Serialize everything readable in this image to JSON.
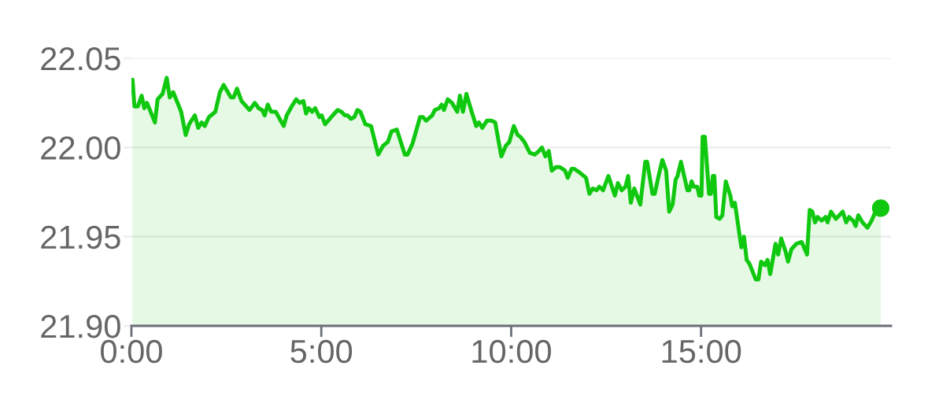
{
  "chart_data": {
    "type": "area",
    "xlim": [
      0,
      20
    ],
    "xticks": [
      {
        "value": 0,
        "label": "0:00"
      },
      {
        "value": 5,
        "label": "5:00"
      },
      {
        "value": 10,
        "label": "10:00"
      },
      {
        "value": 15,
        "label": "15:00"
      }
    ],
    "ylim": [
      21.9,
      22.05
    ],
    "yticks": [
      {
        "value": 21.9,
        "label": "21.90"
      },
      {
        "value": 21.95,
        "label": "21.95"
      },
      {
        "value": 22.0,
        "label": "22.00"
      },
      {
        "value": 22.05,
        "label": "22.05"
      }
    ],
    "grid": "y",
    "series": [
      {
        "color": "#10c810",
        "x": [
          0.03,
          0.08,
          0.17,
          0.27,
          0.34,
          0.41,
          0.62,
          0.69,
          0.82,
          0.93,
          1.01,
          1.1,
          1.31,
          1.43,
          1.52,
          1.67,
          1.76,
          1.85,
          1.93,
          2.04,
          2.21,
          2.33,
          2.43,
          2.62,
          2.69,
          2.78,
          2.9,
          3.11,
          3.25,
          3.35,
          3.44,
          3.51,
          3.59,
          3.68,
          3.8,
          4.01,
          4.09,
          4.22,
          4.34,
          4.43,
          4.53,
          4.6,
          4.67,
          4.76,
          4.84,
          4.95,
          5.01,
          5.1,
          5.26,
          5.43,
          5.53,
          5.62,
          5.69,
          5.78,
          5.87,
          5.95,
          6.03,
          6.16,
          6.31,
          6.5,
          6.63,
          6.75,
          6.85,
          6.99,
          7.2,
          7.27,
          7.4,
          7.6,
          7.68,
          7.76,
          7.92,
          7.99,
          8.1,
          8.17,
          8.23,
          8.33,
          8.44,
          8.58,
          8.65,
          8.73,
          8.82,
          8.96,
          9.08,
          9.15,
          9.24,
          9.36,
          9.48,
          9.58,
          9.74,
          9.86,
          9.95,
          10.07,
          10.17,
          10.24,
          10.35,
          10.49,
          10.62,
          10.73,
          10.81,
          10.9,
          10.99,
          11.07,
          11.18,
          11.28,
          11.42,
          11.49,
          11.59,
          11.66,
          11.8,
          11.97,
          12.06,
          12.15,
          12.25,
          12.32,
          12.42,
          12.56,
          12.73,
          12.81,
          12.91,
          13.01,
          13.08,
          13.15,
          13.24,
          13.4,
          13.53,
          13.58,
          13.72,
          13.78,
          13.88,
          13.98,
          14.08,
          14.16,
          14.25,
          14.33,
          14.38,
          14.47,
          14.64,
          14.69,
          14.75,
          14.81,
          14.9,
          14.95,
          15.01,
          15.04,
          15.1,
          15.21,
          15.26,
          15.31,
          15.35,
          15.4,
          15.49,
          15.56,
          15.65,
          15.77,
          15.82,
          15.89,
          16.06,
          16.13,
          16.2,
          16.27,
          16.44,
          16.51,
          16.58,
          16.68,
          16.75,
          16.82,
          16.96,
          17.03,
          17.11,
          17.22,
          17.29,
          17.38,
          17.51,
          17.65,
          17.79,
          17.86,
          17.93,
          18.0,
          18.07,
          18.17,
          18.28,
          18.33,
          18.42,
          18.55,
          18.73,
          18.82,
          18.9,
          19.0,
          19.07,
          19.14,
          19.25,
          19.38,
          19.49,
          19.59,
          19.73
        ],
        "values": [
          22.038,
          22.023,
          22.023,
          22.029,
          22.022,
          22.025,
          22.014,
          22.027,
          22.03,
          22.039,
          22.028,
          22.031,
          22.02,
          22.007,
          22.013,
          22.018,
          22.011,
          22.014,
          22.012,
          22.017,
          22.02,
          22.031,
          22.035,
          22.028,
          22.028,
          22.033,
          22.026,
          22.021,
          22.025,
          22.022,
          22.021,
          22.018,
          22.024,
          22.02,
          22.02,
          22.012,
          22.018,
          22.023,
          22.027,
          22.025,
          22.026,
          22.019,
          22.022,
          22.02,
          22.022,
          22.017,
          22.018,
          22.013,
          22.017,
          22.021,
          22.02,
          22.018,
          22.018,
          22.016,
          22.017,
          22.021,
          22.02,
          22.013,
          22.012,
          21.996,
          22.001,
          22.003,
          22.009,
          22.01,
          21.996,
          21.996,
          22.002,
          22.017,
          22.017,
          22.015,
          22.018,
          22.021,
          22.022,
          22.024,
          22.021,
          22.027,
          22.025,
          22.02,
          22.029,
          22.02,
          22.03,
          22.02,
          22.012,
          22.014,
          22.011,
          22.015,
          22.015,
          22.014,
          21.995,
          22.001,
          22.003,
          22.012,
          22.007,
          22.006,
          22.003,
          21.997,
          21.996,
          21.998,
          22.0,
          21.995,
          21.998,
          21.987,
          21.989,
          21.989,
          21.987,
          21.983,
          21.988,
          21.988,
          21.986,
          21.983,
          21.974,
          21.977,
          21.976,
          21.978,
          21.976,
          21.984,
          21.973,
          21.98,
          21.976,
          21.978,
          21.984,
          21.969,
          21.977,
          21.968,
          21.992,
          21.992,
          21.974,
          21.974,
          21.984,
          21.993,
          21.987,
          21.964,
          21.968,
          21.982,
          21.984,
          21.992,
          21.976,
          21.976,
          21.981,
          21.978,
          21.978,
          21.973,
          21.973,
          22.006,
          22.006,
          21.974,
          21.974,
          21.984,
          21.984,
          21.961,
          21.96,
          21.962,
          21.981,
          21.973,
          21.967,
          21.969,
          21.944,
          21.95,
          21.937,
          21.935,
          21.926,
          21.926,
          21.936,
          21.934,
          21.937,
          21.929,
          21.946,
          21.94,
          21.949,
          21.942,
          21.936,
          21.943,
          21.946,
          21.947,
          21.94,
          21.965,
          21.964,
          21.958,
          21.961,
          21.959,
          21.961,
          21.958,
          21.964,
          21.96,
          21.964,
          21.958,
          21.961,
          21.959,
          21.956,
          21.962,
          21.958,
          21.955,
          21.959,
          21.964,
          21.966
        ]
      },
      {
        "type": "scatter",
        "color": "#10c810",
        "marker": "circle",
        "x": [
          19.73
        ],
        "values": [
          21.966
        ]
      }
    ]
  }
}
